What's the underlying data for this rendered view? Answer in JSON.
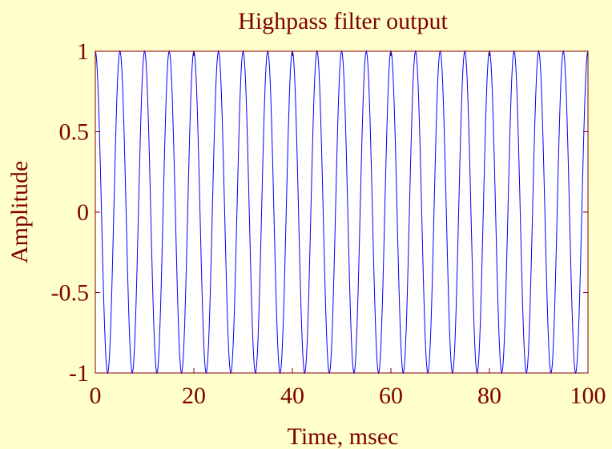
{
  "chart_data": {
    "type": "line",
    "title": "Highpass filter output",
    "xlabel": "Time, msec",
    "ylabel": "Amplitude",
    "xlim": [
      0,
      100
    ],
    "ylim": [
      -1,
      1
    ],
    "xticks": [
      0,
      20,
      40,
      60,
      80,
      100
    ],
    "yticks": [
      -1,
      -0.5,
      0,
      0.5,
      1
    ],
    "xtick_labels": [
      "0",
      "20",
      "40",
      "60",
      "80",
      "100"
    ],
    "ytick_labels": [
      "-1",
      "-0.5",
      "0",
      "0.5",
      "1"
    ],
    "grid": false,
    "signal_frequency_hz": 200,
    "series": [
      {
        "color": "#0000FF",
        "x_range": [
          0,
          100
        ],
        "kind": "sinusoid",
        "amplitude": 1,
        "period_ms": 5
      }
    ],
    "colors": {
      "background": "#FFFFCC",
      "axes_background": "#FFFFFF",
      "axes_color": "#800000",
      "text_color": "#800000",
      "line_color": "#0000FF"
    }
  }
}
